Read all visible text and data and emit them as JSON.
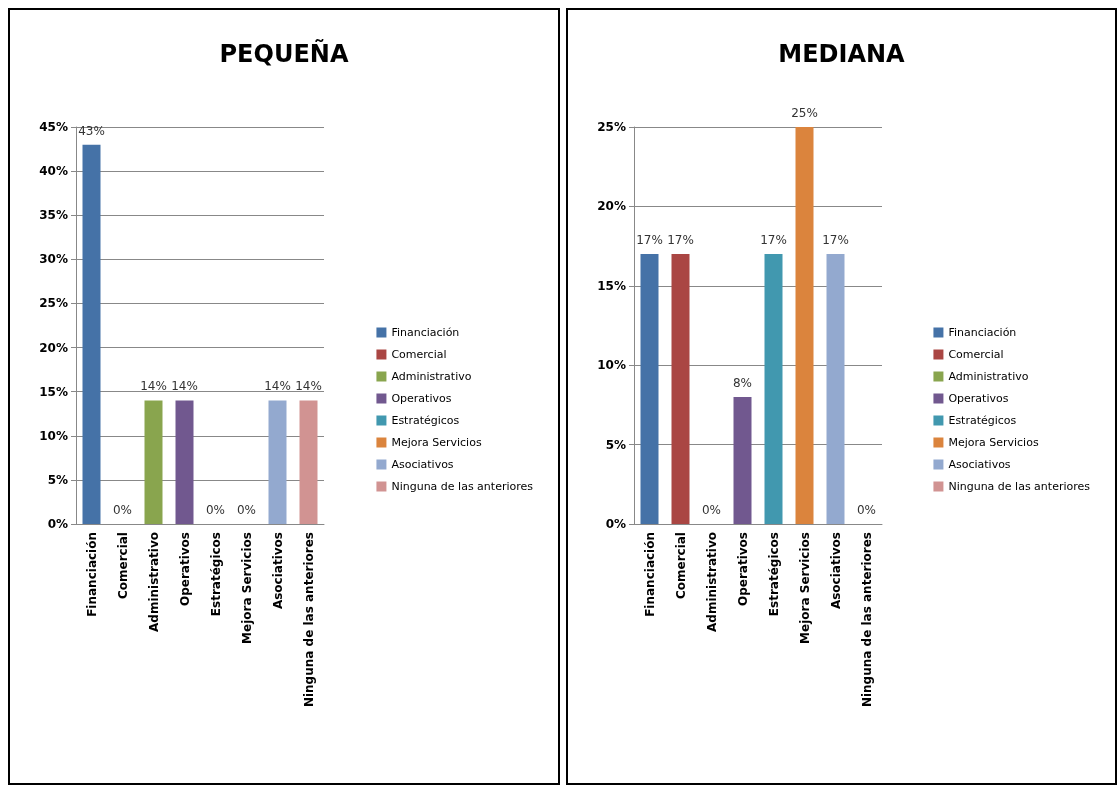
{
  "chart_data": [
    {
      "type": "bar",
      "title": "PEQUEÑA",
      "categories": [
        "Financiación",
        "Comercial",
        "Administrativo",
        "Operativos",
        "Estratégicos",
        "Mejora Servicios",
        "Asociativos",
        "Ninguna de las anteriores"
      ],
      "series": [
        {
          "name": "Financiación",
          "color": "#4572a7",
          "values": [
            43,
            null,
            null,
            null,
            null,
            null,
            null,
            null
          ],
          "value_labels": [
            "43%",
            null,
            null,
            null,
            null,
            null,
            null,
            null
          ]
        },
        {
          "name": "Comercial",
          "color": "#aa4643",
          "values": [
            null,
            0,
            null,
            null,
            null,
            null,
            null,
            null
          ],
          "value_labels": [
            null,
            "0%",
            null,
            null,
            null,
            null,
            null,
            null
          ]
        },
        {
          "name": "Administrativo",
          "color": "#89a54e",
          "values": [
            null,
            null,
            14,
            null,
            null,
            null,
            null,
            null
          ],
          "value_labels": [
            null,
            null,
            "14%",
            null,
            null,
            null,
            null,
            null
          ]
        },
        {
          "name": "Operativos",
          "color": "#71588f",
          "values": [
            null,
            null,
            null,
            14,
            null,
            null,
            null,
            null
          ],
          "value_labels": [
            null,
            null,
            null,
            "14%",
            null,
            null,
            null,
            null
          ]
        },
        {
          "name": "Estratégicos",
          "color": "#4198af",
          "values": [
            null,
            null,
            null,
            null,
            0,
            null,
            null,
            null
          ],
          "value_labels": [
            null,
            null,
            null,
            null,
            "0%",
            null,
            null,
            null
          ]
        },
        {
          "name": "Mejora Servicios",
          "color": "#db843d",
          "values": [
            null,
            null,
            null,
            null,
            null,
            0,
            null,
            null
          ],
          "value_labels": [
            null,
            null,
            null,
            null,
            null,
            "0%",
            null,
            null
          ]
        },
        {
          "name": "Asociativos",
          "color": "#93a9cf",
          "values": [
            null,
            null,
            null,
            null,
            null,
            null,
            14,
            null
          ],
          "value_labels": [
            null,
            null,
            null,
            null,
            null,
            null,
            "14%",
            null
          ]
        },
        {
          "name": "Ninguna de las anteriores",
          "color": "#d19392",
          "values": [
            null,
            null,
            null,
            null,
            null,
            null,
            null,
            14
          ],
          "value_labels": [
            null,
            null,
            null,
            null,
            null,
            null,
            null,
            "14%"
          ]
        }
      ],
      "ylim": [
        0,
        45
      ],
      "yticks": [
        {
          "value": 0,
          "label": "0%"
        },
        {
          "value": 5,
          "label": "5%"
        },
        {
          "value": 10,
          "label": "10%"
        },
        {
          "value": 15,
          "label": "15%"
        },
        {
          "value": 20,
          "label": "20%"
        },
        {
          "value": 25,
          "label": "25%"
        },
        {
          "value": 30,
          "label": "30%"
        },
        {
          "value": 35,
          "label": "35%"
        },
        {
          "value": 40,
          "label": "40%"
        },
        {
          "value": 45,
          "label": "45%"
        }
      ],
      "grid": "y",
      "legend": "right"
    },
    {
      "type": "bar",
      "title": "MEDIANA",
      "categories": [
        "Financiación",
        "Comercial",
        "Administrativo",
        "Operativos",
        "Estratégicos",
        "Mejora Servicios",
        "Asociativos",
        "Ninguna de las anteriores"
      ],
      "series": [
        {
          "name": "Financiación",
          "color": "#4572a7",
          "values": [
            17,
            null,
            null,
            null,
            null,
            null,
            null,
            null
          ],
          "value_labels": [
            "17%",
            null,
            null,
            null,
            null,
            null,
            null,
            null
          ]
        },
        {
          "name": "Comercial",
          "color": "#aa4643",
          "values": [
            null,
            17,
            null,
            null,
            null,
            null,
            null,
            null
          ],
          "value_labels": [
            null,
            "17%",
            null,
            null,
            null,
            null,
            null,
            null
          ]
        },
        {
          "name": "Administrativo",
          "color": "#89a54e",
          "values": [
            null,
            null,
            0,
            null,
            null,
            null,
            null,
            null
          ],
          "value_labels": [
            null,
            null,
            "0%",
            null,
            null,
            null,
            null,
            null
          ]
        },
        {
          "name": "Operativos",
          "color": "#71588f",
          "values": [
            null,
            null,
            null,
            8,
            null,
            null,
            null,
            null
          ],
          "value_labels": [
            null,
            null,
            null,
            "8%",
            null,
            null,
            null,
            null
          ]
        },
        {
          "name": "Estratégicos",
          "color": "#4198af",
          "values": [
            null,
            null,
            null,
            null,
            17,
            null,
            null,
            null
          ],
          "value_labels": [
            null,
            null,
            null,
            null,
            "17%",
            null,
            null,
            null
          ]
        },
        {
          "name": "Mejora Servicios",
          "color": "#db843d",
          "values": [
            null,
            null,
            null,
            null,
            null,
            25,
            null,
            null
          ],
          "value_labels": [
            null,
            null,
            null,
            null,
            null,
            "25%",
            null,
            null
          ]
        },
        {
          "name": "Asociativos",
          "color": "#93a9cf",
          "values": [
            null,
            null,
            null,
            null,
            null,
            null,
            17,
            null
          ],
          "value_labels": [
            null,
            null,
            null,
            null,
            null,
            null,
            "17%",
            null
          ]
        },
        {
          "name": "Ninguna de las anteriores",
          "color": "#d19392",
          "values": [
            null,
            null,
            null,
            null,
            null,
            null,
            null,
            0
          ],
          "value_labels": [
            null,
            null,
            null,
            null,
            null,
            null,
            null,
            "0%"
          ]
        }
      ],
      "ylim": [
        0,
        25
      ],
      "yticks": [
        {
          "value": 0,
          "label": "0%"
        },
        {
          "value": 5,
          "label": "5%"
        },
        {
          "value": 10,
          "label": "10%"
        },
        {
          "value": 15,
          "label": "15%"
        },
        {
          "value": 20,
          "label": "20%"
        },
        {
          "value": 25,
          "label": "25%"
        }
      ],
      "grid": "y",
      "legend": "right"
    }
  ]
}
